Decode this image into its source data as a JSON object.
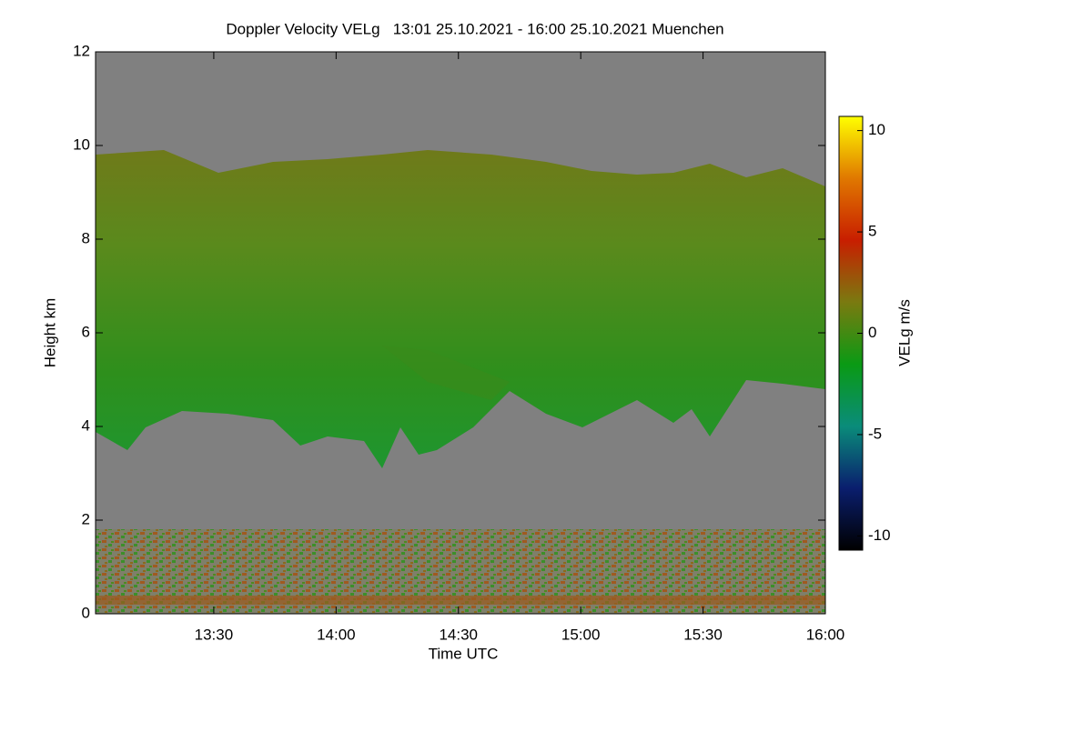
{
  "chart_data": {
    "type": "heatmap",
    "title": "Doppler Velocity VELg   13:01 25.10.2021 - 16:00 25.10.2021 Muenchen",
    "xlabel": "Time UTC",
    "ylabel": "Height km",
    "xlim": [
      13.0167,
      16.0
    ],
    "xticks": [
      {
        "value": 13.5,
        "label": "13:30"
      },
      {
        "value": 14.0,
        "label": "14:00"
      },
      {
        "value": 14.5,
        "label": "14:30"
      },
      {
        "value": 15.0,
        "label": "15:00"
      },
      {
        "value": 15.5,
        "label": "15:30"
      },
      {
        "value": 16.0,
        "label": "16:00"
      }
    ],
    "ylim": [
      0,
      12
    ],
    "yticks": [
      0,
      2,
      4,
      6,
      8,
      10,
      12
    ],
    "colorbar": {
      "label": "VELg m/s",
      "lim": [
        -10.7,
        10.7
      ],
      "ticks": [
        -10,
        -5,
        0,
        5,
        10
      ],
      "colormap": [
        "#000000",
        "#0a1e6e",
        "#0a8c7a",
        "#0a9a14",
        "#7a7a10",
        "#c81e00",
        "#e07800",
        "#ffff00"
      ]
    },
    "background": "#808080"
  }
}
